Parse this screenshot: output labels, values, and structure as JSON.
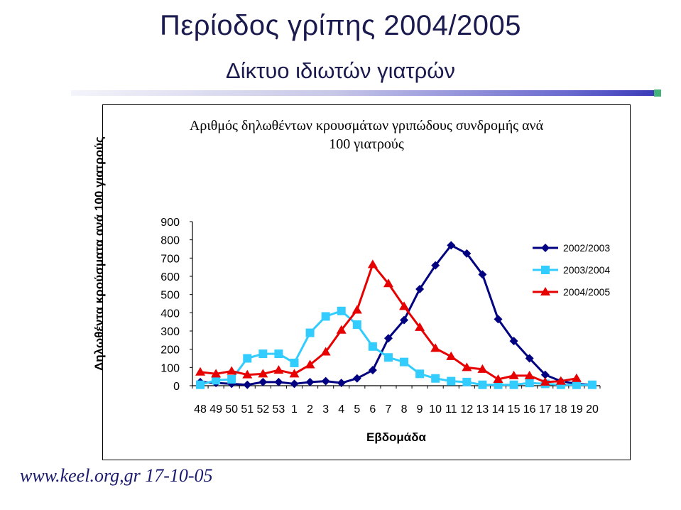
{
  "slide": {
    "title": "Περίοδος γρίπης 2004/2005",
    "subtitle": "Δίκτυο ιδιωτών γιατρών",
    "footer": "www.keel.org,gr 17-10-05"
  },
  "colors": {
    "title": "#1a1a4e",
    "series_2002": "#000080",
    "series_2003": "#33ccff",
    "series_2004": "#e60000"
  },
  "chart_data": {
    "type": "line",
    "title_line1": "Αριθμός δηλωθέντων κρουσμάτων γριπώδους συνδρομής ανά",
    "title_line2": "100 γιατρούς",
    "ylabel": "Δηλωθέντα κρούσματα ανά 100 γιατρούς",
    "xlabel": "Εβδομάδα",
    "ylim": [
      0,
      900
    ],
    "yticks": [
      0,
      100,
      200,
      300,
      400,
      500,
      600,
      700,
      800,
      900
    ],
    "categories": [
      "48",
      "49",
      "50",
      "51",
      "52",
      "53",
      "1",
      "2",
      "3",
      "4",
      "5",
      "6",
      "7",
      "8",
      "9",
      "10",
      "11",
      "12",
      "13",
      "14",
      "15",
      "16",
      "17",
      "18",
      "19",
      "20"
    ],
    "legend_position": "right",
    "series": [
      {
        "name": "2002/2003",
        "color": "#000080",
        "marker": "diamond",
        "values": [
          20,
          15,
          10,
          5,
          20,
          20,
          10,
          20,
          25,
          15,
          40,
          85,
          260,
          360,
          530,
          660,
          770,
          725,
          610,
          365,
          245,
          150,
          60,
          25,
          10,
          5
        ]
      },
      {
        "name": "2003/2004",
        "color": "#33ccff",
        "marker": "square",
        "values": [
          5,
          30,
          35,
          150,
          175,
          175,
          125,
          290,
          380,
          410,
          335,
          215,
          155,
          130,
          65,
          40,
          25,
          20,
          5,
          5,
          5,
          15,
          10,
          5,
          5,
          5
        ]
      },
      {
        "name": "2004/2005",
        "color": "#e60000",
        "marker": "triangle",
        "values": [
          75,
          65,
          80,
          60,
          65,
          85,
          65,
          115,
          185,
          305,
          415,
          665,
          560,
          435,
          320,
          205,
          160,
          100,
          90,
          35,
          55,
          55,
          20,
          25,
          40,
          null
        ]
      }
    ]
  }
}
